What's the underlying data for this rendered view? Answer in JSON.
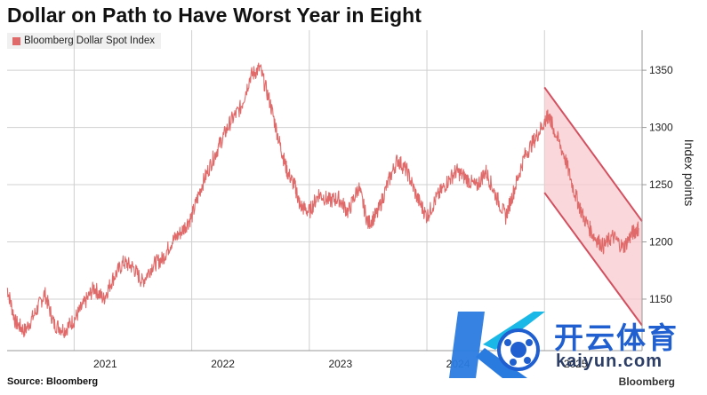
{
  "chart_data": {
    "type": "line",
    "title": "Dollar on Path to Have Worst Year in Eight",
    "xlabel": "",
    "ylabel": "Index points",
    "ylim": [
      1105,
      1385
    ],
    "xlim": [
      2020.43,
      2025.83
    ],
    "yticks": [
      1150,
      1200,
      1250,
      1300,
      1350
    ],
    "xticks": [
      {
        "label": "2021",
        "value": 2021.0
      },
      {
        "label": "2022",
        "value": 2022.0
      },
      {
        "label": "2023",
        "value": 2023.0
      },
      {
        "label": "2024",
        "value": 2024.0
      },
      {
        "label": "2025",
        "value": 2025.0
      }
    ],
    "grid": true,
    "legend_position": "top-left",
    "colors": {
      "line": "#e06a6a",
      "channel_fill": "#f7c9cd",
      "channel_line": "#d2505f",
      "grid": "#d0d0d0"
    },
    "series": [
      {
        "name": "Bloomberg Dollar Spot Index",
        "x": [
          2020.43,
          2020.5,
          2020.58,
          2020.67,
          2020.75,
          2020.83,
          2020.92,
          2021.0,
          2021.08,
          2021.17,
          2021.25,
          2021.33,
          2021.42,
          2021.5,
          2021.58,
          2021.67,
          2021.75,
          2021.83,
          2021.92,
          2022.0,
          2022.08,
          2022.17,
          2022.25,
          2022.33,
          2022.42,
          2022.5,
          2022.58,
          2022.67,
          2022.75,
          2022.81,
          2022.88,
          2022.92,
          2023.0,
          2023.08,
          2023.17,
          2023.25,
          2023.33,
          2023.42,
          2023.5,
          2023.58,
          2023.67,
          2023.75,
          2023.83,
          2023.92,
          2024.0,
          2024.08,
          2024.17,
          2024.25,
          2024.33,
          2024.42,
          2024.5,
          2024.58,
          2024.67,
          2024.75,
          2024.83,
          2024.92,
          2025.0,
          2025.04,
          2025.08,
          2025.17,
          2025.25,
          2025.33,
          2025.42,
          2025.5,
          2025.58,
          2025.67,
          2025.75,
          2025.8
        ],
        "y": [
          1160,
          1130,
          1122,
          1138,
          1155,
          1128,
          1123,
          1132,
          1145,
          1160,
          1150,
          1168,
          1182,
          1178,
          1165,
          1180,
          1185,
          1200,
          1210,
          1222,
          1248,
          1270,
          1288,
          1305,
          1318,
          1345,
          1352,
          1320,
          1285,
          1262,
          1248,
          1232,
          1226,
          1242,
          1236,
          1238,
          1226,
          1248,
          1216,
          1225,
          1252,
          1272,
          1262,
          1238,
          1222,
          1238,
          1252,
          1262,
          1256,
          1248,
          1262,
          1242,
          1222,
          1248,
          1275,
          1290,
          1305,
          1310,
          1298,
          1275,
          1245,
          1222,
          1205,
          1196,
          1205,
          1195,
          1208,
          1212
        ]
      }
    ],
    "channel": {
      "upper": {
        "x": [
          2025.0,
          2025.83
        ],
        "y": [
          1335,
          1218
        ]
      },
      "lower": {
        "x": [
          2025.0,
          2025.83
        ],
        "y": [
          1243,
          1127
        ]
      }
    }
  },
  "source": "Source: Bloomberg",
  "brand": "Bloomberg",
  "watermark": {
    "cn": "开云体育",
    "url": "kaiyun.com"
  }
}
